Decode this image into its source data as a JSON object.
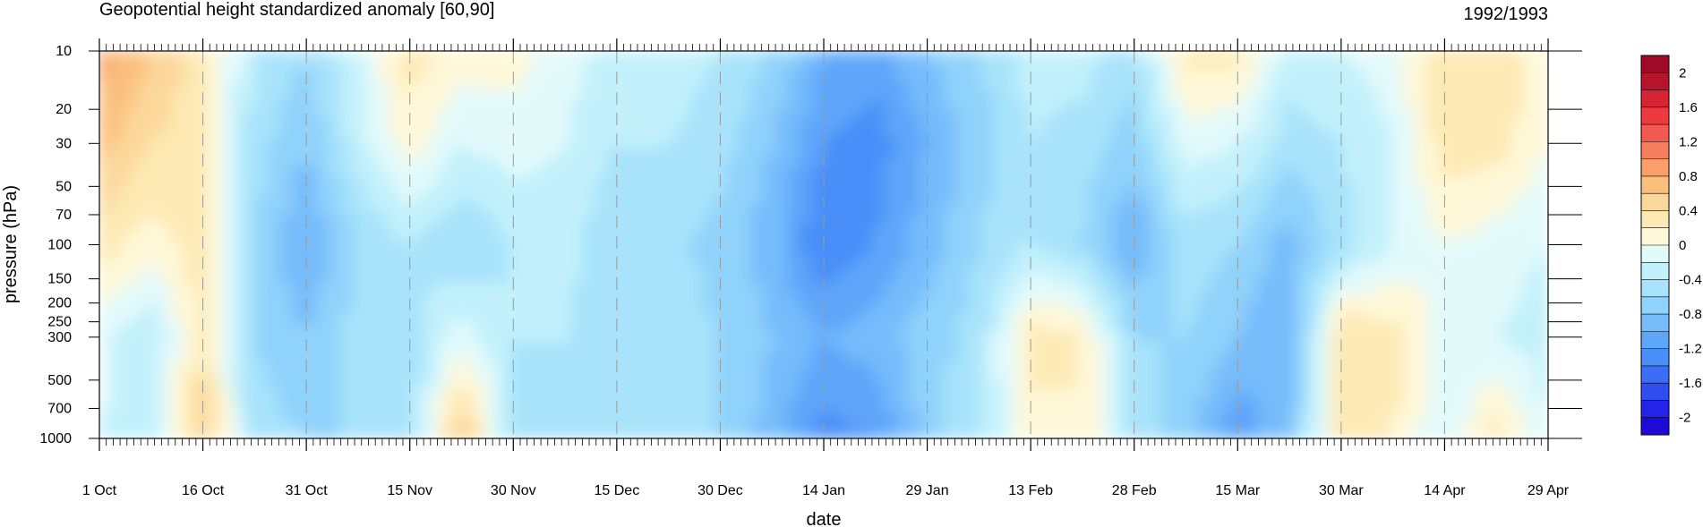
{
  "chart_data": {
    "type": "heatmap",
    "title": "Geopotential height standardized anomaly [60,90]",
    "title_right": "1992/1993",
    "xlabel": "date",
    "ylabel": "pressure (hPa)",
    "y_scale": "log",
    "y_inverted": true,
    "ylim": [
      1000,
      10
    ],
    "y_ticks": [
      10,
      20,
      30,
      50,
      70,
      100,
      150,
      200,
      250,
      300,
      500,
      700,
      1000
    ],
    "x_ticks": [
      "1 Oct",
      "16 Oct",
      "31 Oct",
      "15 Nov",
      "30 Nov",
      "15 Dec",
      "30 Dec",
      "14 Jan",
      "29 Jan",
      "13 Feb",
      "28 Feb",
      "15 Mar",
      "30 Mar",
      "14 Apr",
      "29 Apr"
    ],
    "x_range": [
      "1992-10-01",
      "1993-04-29"
    ],
    "levels": [
      -2.2,
      -2,
      -1.8,
      -1.6,
      -1.4,
      -1.2,
      -1,
      -0.8,
      -0.6,
      -0.4,
      -0.2,
      0,
      0.2,
      0.4,
      0.6,
      0.8,
      1,
      1.2,
      1.4,
      1.6,
      1.8,
      2,
      2.2
    ],
    "colorbar_labels": [
      2,
      1.6,
      1.2,
      0.8,
      0.4,
      0,
      -0.4,
      -0.8,
      -1.2,
      -1.6,
      -2
    ],
    "colors": [
      "#1e0ad6",
      "#2424e8",
      "#2e4ef0",
      "#3a6ef5",
      "#4a8ef8",
      "#5fa6fa",
      "#76bcfb",
      "#8fd2fb",
      "#a8e3fb",
      "#c2f1fb",
      "#e3fafb",
      "#fff8d8",
      "#fde9b3",
      "#fcd79a",
      "#fbbf7d",
      "#f9a06a",
      "#f67e5e",
      "#f25a50",
      "#ec3a40",
      "#d62434",
      "#b8132c",
      "#a00a26"
    ],
    "grid": false,
    "values_approx": {
      "columns": [
        "1 Oct",
        "8 Oct",
        "16 Oct",
        "23 Oct",
        "31 Oct",
        "8 Nov",
        "15 Nov",
        "22 Nov",
        "30 Nov",
        "8 Dec",
        "15 Dec",
        "22 Dec",
        "30 Dec",
        "7 Jan",
        "14 Jan",
        "22 Jan",
        "29 Jan",
        "6 Feb",
        "13 Feb",
        "20 Feb",
        "28 Feb",
        "8 Mar",
        "15 Mar",
        "22 Mar",
        "30 Mar",
        "7 Apr",
        "14 Apr",
        "22 Apr",
        "29 Apr"
      ],
      "levels_hPa": [
        10,
        30,
        100,
        300,
        1000
      ],
      "rows": [
        [
          0.9,
          0.6,
          0.3,
          -0.4,
          -0.6,
          -0.2,
          0.3,
          0.1,
          0.1,
          -0.1,
          -0.3,
          -0.3,
          -0.4,
          -0.6,
          -1.0,
          -1.1,
          -0.8,
          -0.6,
          -0.3,
          -0.3,
          -0.5,
          0.3,
          0.3,
          -0.3,
          -0.2,
          -0.1,
          0.4,
          0.4,
          0.1
        ],
        [
          0.7,
          0.4,
          0.3,
          -0.5,
          -0.8,
          -0.3,
          0.1,
          -0.2,
          -0.1,
          -0.2,
          -0.4,
          -0.4,
          -0.5,
          -0.8,
          -1.2,
          -1.3,
          -1.0,
          -0.7,
          -0.4,
          -0.5,
          -0.7,
          -0.1,
          -0.2,
          -0.5,
          -0.4,
          -0.2,
          0.3,
          0.3,
          0.0
        ],
        [
          0.3,
          0.1,
          0.3,
          -0.6,
          -1.0,
          -0.6,
          -0.4,
          -0.6,
          -0.4,
          -0.3,
          -0.6,
          -0.5,
          -0.7,
          -0.9,
          -1.4,
          -1.2,
          -0.9,
          -0.6,
          -0.4,
          -0.6,
          -1.0,
          -0.5,
          -0.6,
          -0.9,
          -0.5,
          -0.2,
          0.0,
          -0.1,
          -0.2
        ],
        [
          -0.1,
          -0.4,
          0.3,
          -0.6,
          -0.8,
          -0.5,
          -0.5,
          -0.1,
          -0.4,
          -0.4,
          -0.6,
          -0.5,
          -0.6,
          -0.8,
          -1.0,
          -0.9,
          -0.7,
          -0.5,
          0.3,
          0.2,
          -0.6,
          -0.6,
          -0.8,
          -1.0,
          0.4,
          0.3,
          -0.1,
          -0.2,
          -0.3
        ],
        [
          -0.2,
          -0.4,
          0.6,
          -0.5,
          -0.6,
          -0.6,
          -0.6,
          0.7,
          -0.5,
          -0.4,
          -0.5,
          -0.4,
          -0.6,
          -0.9,
          -1.3,
          -1.2,
          -0.7,
          -0.4,
          0.1,
          0.2,
          -0.5,
          -0.7,
          -1.2,
          -0.8,
          0.3,
          0.2,
          -0.2,
          0.3,
          -0.2
        ]
      ]
    }
  }
}
